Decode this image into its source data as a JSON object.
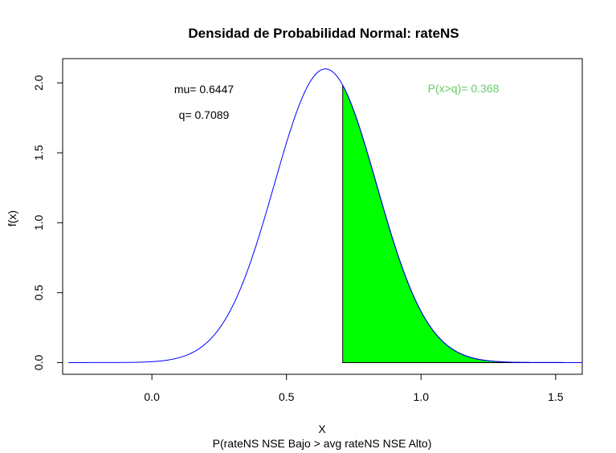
{
  "chart_data": {
    "type": "area",
    "title": "Densidad de Probabilidad Normal: rateNS",
    "xlabel": "X",
    "subtitle": "P(rateNS NSE Bajo > avg rateNS NSE Alto)",
    "ylabel": "f(x)",
    "xlim": [
      -0.3316,
      1.5989
    ],
    "ylim": [
      -0.0836,
      2.1732
    ],
    "x_ticks": [
      0.0,
      0.5,
      1.0,
      1.5
    ],
    "x_tick_labels": [
      "0.0",
      "0.5",
      "1.0",
      "1.5"
    ],
    "y_ticks": [
      0.0,
      0.5,
      1.0,
      1.5,
      2.0
    ],
    "y_tick_labels": [
      "0.0",
      "0.5",
      "1.0",
      "1.5",
      "2.0"
    ],
    "grid": false,
    "distribution": {
      "mean": 0.6447,
      "sd": 0.19,
      "x_from": -0.31,
      "x_to": 1.6
    },
    "threshold_q": 0.7089,
    "annotations": {
      "mu": "mu= 0.6447",
      "q": "q= 0.7089",
      "prob": "P(x>q)= 0.368"
    },
    "colors": {
      "curve": "#0000ff",
      "fill": "#00ff00",
      "fill_border": "#000000",
      "prob_text": "#66cc66"
    }
  }
}
